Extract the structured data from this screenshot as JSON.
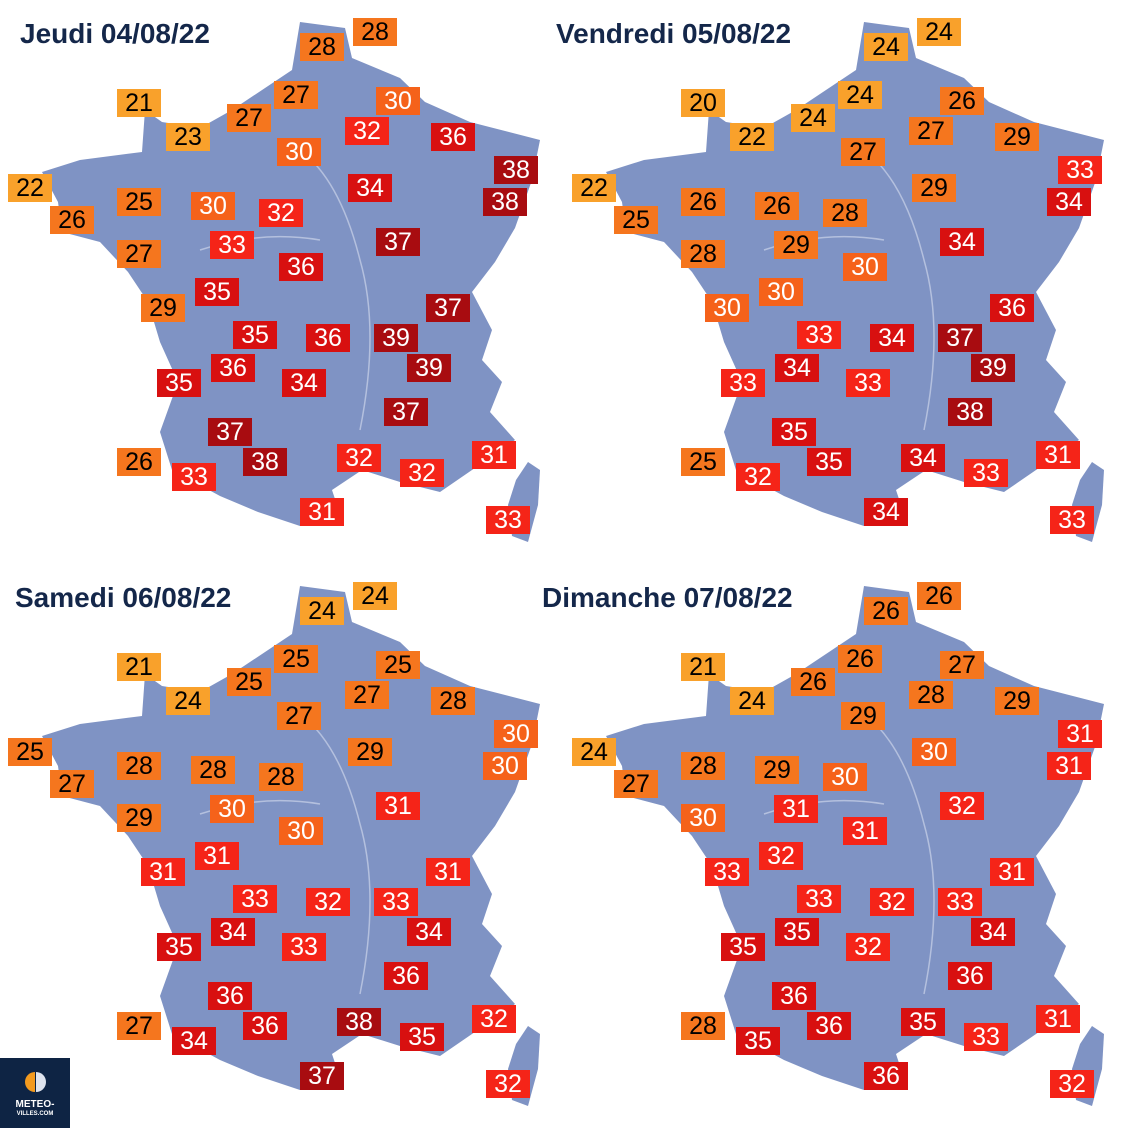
{
  "colors": {
    "map": "#7f93c4",
    "t_le24": "#f9a12b",
    "t_25_29": "#f5761e",
    "t_30": "#f5621a",
    "t_31_33": "#f52418",
    "t_34_36": "#d81010",
    "t_37plus": "#a80c10"
  },
  "days": [
    {
      "title": "Jeudi 04/08/22",
      "temps": [
        28,
        28,
        21,
        27,
        30,
        27,
        23,
        32,
        36,
        30,
        38,
        22,
        34,
        25,
        30,
        38,
        32,
        26,
        33,
        37,
        27,
        36,
        35,
        29,
        37,
        35,
        36,
        39,
        36,
        39,
        35,
        34,
        37,
        37,
        26,
        32,
        31,
        38,
        33,
        32,
        31,
        33
      ]
    },
    {
      "title": "Vendredi 05/08/22",
      "temps": [
        24,
        24,
        20,
        24,
        26,
        24,
        22,
        27,
        29,
        27,
        33,
        22,
        29,
        26,
        26,
        34,
        28,
        25,
        29,
        34,
        28,
        30,
        30,
        30,
        36,
        33,
        34,
        37,
        34,
        39,
        33,
        33,
        38,
        35,
        25,
        34,
        31,
        35,
        32,
        33,
        34,
        33
      ]
    },
    {
      "title": "Samedi 06/08/22",
      "temps": [
        24,
        24,
        21,
        25,
        25,
        25,
        24,
        27,
        28,
        27,
        30,
        25,
        29,
        28,
        28,
        30,
        28,
        27,
        30,
        31,
        29,
        30,
        31,
        31,
        31,
        33,
        32,
        33,
        34,
        34,
        35,
        33,
        36,
        36,
        27,
        38,
        32,
        36,
        34,
        35,
        37,
        32
      ]
    },
    {
      "title": "Dimanche 07/08/22",
      "temps": [
        26,
        26,
        21,
        26,
        27,
        26,
        24,
        28,
        29,
        29,
        31,
        24,
        30,
        28,
        29,
        31,
        30,
        27,
        31,
        32,
        30,
        31,
        32,
        33,
        31,
        33,
        32,
        33,
        35,
        34,
        35,
        32,
        36,
        36,
        28,
        35,
        31,
        36,
        35,
        33,
        36,
        32
      ]
    }
  ],
  "logo": {
    "line1": "METEO-",
    "line2": "VILLES.COM"
  }
}
